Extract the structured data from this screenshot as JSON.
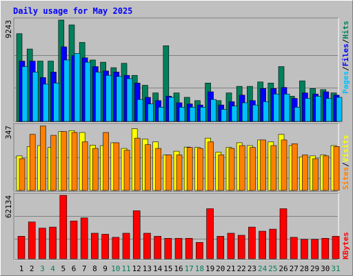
{
  "title": "Daily usage for May 2025",
  "colors": {
    "background": "#c0c0c0",
    "title": "#0000ff",
    "hits": "#00805c",
    "files": "#0000ff",
    "pages": "#00c0ff",
    "visits": "#ffff00",
    "sites": "#ff8000",
    "kbytes": "#ff0000",
    "weekend_label": "#00805c",
    "weekday_label": "#000000",
    "separator": "#000000"
  },
  "chart_data": [
    {
      "type": "bar",
      "panel": "hits-files-pages",
      "max_label": "9243",
      "ylim": [
        0,
        9243
      ],
      "legend": [
        "Pages",
        "/",
        "Files",
        "/",
        "Hits"
      ],
      "categories": [
        "1",
        "2",
        "3",
        "4",
        "5",
        "6",
        "7",
        "8",
        "9",
        "10",
        "11",
        "12",
        "13",
        "14",
        "15",
        "16",
        "17",
        "18",
        "19",
        "20",
        "21",
        "22",
        "23",
        "24",
        "25",
        "26",
        "27",
        "28",
        "29",
        "30",
        "31"
      ],
      "series": [
        {
          "name": "Hits",
          "values": [
            8000,
            6600,
            5500,
            5500,
            9243,
            8800,
            7200,
            5600,
            5400,
            4900,
            5300,
            4200,
            3300,
            2600,
            6900,
            2600,
            2200,
            1900,
            3500,
            1900,
            2600,
            3200,
            3200,
            3600,
            3500,
            5000,
            2300,
            3700,
            3000,
            2900,
            2600
          ]
        },
        {
          "name": "Files",
          "values": [
            5500,
            5500,
            4000,
            4500,
            6800,
            6000,
            5800,
            5000,
            4600,
            4500,
            4200,
            3500,
            2200,
            1900,
            2300,
            1700,
            1600,
            1500,
            2700,
            1500,
            1800,
            2400,
            1900,
            3000,
            3000,
            3100,
            2100,
            2600,
            2500,
            2700,
            2400
          ]
        },
        {
          "name": "Pages",
          "values": [
            5000,
            4500,
            3400,
            3500,
            5600,
            6200,
            5400,
            4500,
            4200,
            4100,
            3900,
            2000,
            1600,
            1300,
            2200,
            1300,
            1300,
            1300,
            2000,
            1100,
            1400,
            1700,
            1500,
            1800,
            2500,
            2500,
            1300,
            2100,
            2300,
            2100,
            2200
          ]
        }
      ]
    },
    {
      "type": "bar",
      "panel": "visits-sites",
      "max_label": "347",
      "ylim": [
        0,
        347
      ],
      "legend": [
        "Sites",
        "/",
        "Visits"
      ],
      "categories": [
        "1",
        "2",
        "3",
        "4",
        "5",
        "6",
        "7",
        "8",
        "9",
        "10",
        "11",
        "12",
        "13",
        "14",
        "15",
        "16",
        "17",
        "18",
        "19",
        "20",
        "21",
        "22",
        "23",
        "24",
        "25",
        "26",
        "27",
        "28",
        "29",
        "30",
        "31"
      ],
      "series": [
        {
          "name": "Visits",
          "values": [
            185,
            235,
            240,
            230,
            315,
            320,
            310,
            242,
            240,
            255,
            225,
            330,
            275,
            260,
            190,
            210,
            232,
            230,
            280,
            205,
            230,
            255,
            240,
            270,
            260,
            300,
            240,
            180,
            185,
            190,
            240
          ]
        },
        {
          "name": "Sites",
          "values": [
            170,
            300,
            345,
            295,
            315,
            310,
            260,
            225,
            310,
            255,
            215,
            280,
            245,
            225,
            190,
            190,
            230,
            225,
            260,
            190,
            225,
            240,
            230,
            270,
            240,
            270,
            250,
            190,
            170,
            185,
            235
          ]
        }
      ]
    },
    {
      "type": "bar",
      "panel": "kbytes",
      "max_label": "62134",
      "ylim": [
        0,
        62134
      ],
      "legend": [
        "KBytes"
      ],
      "categories": [
        "1",
        "2",
        "3",
        "4",
        "5",
        "6",
        "7",
        "8",
        "9",
        "10",
        "11",
        "12",
        "13",
        "14",
        "15",
        "16",
        "17",
        "18",
        "19",
        "20",
        "21",
        "22",
        "23",
        "24",
        "25",
        "26",
        "27",
        "28",
        "29",
        "30",
        "31"
      ],
      "series": [
        {
          "name": "KBytes",
          "values": [
            22000,
            36000,
            30000,
            31000,
            62134,
            37000,
            40000,
            25000,
            24000,
            21000,
            25000,
            47000,
            25000,
            22000,
            20000,
            20000,
            20000,
            16000,
            49000,
            22000,
            25000,
            23000,
            31000,
            27000,
            29000,
            49000,
            21000,
            19000,
            19000,
            20000,
            22000
          ]
        }
      ]
    }
  ],
  "x_labels": [
    "1",
    "2",
    "3",
    "4",
    "5",
    "6",
    "7",
    "8",
    "9",
    "10",
    "11",
    "12",
    "13",
    "14",
    "15",
    "16",
    "17",
    "18",
    "19",
    "20",
    "21",
    "22",
    "23",
    "24",
    "25",
    "26",
    "27",
    "28",
    "29",
    "30",
    "31"
  ],
  "weekend_days": [
    3,
    4,
    10,
    11,
    17,
    18,
    24,
    25,
    31
  ]
}
